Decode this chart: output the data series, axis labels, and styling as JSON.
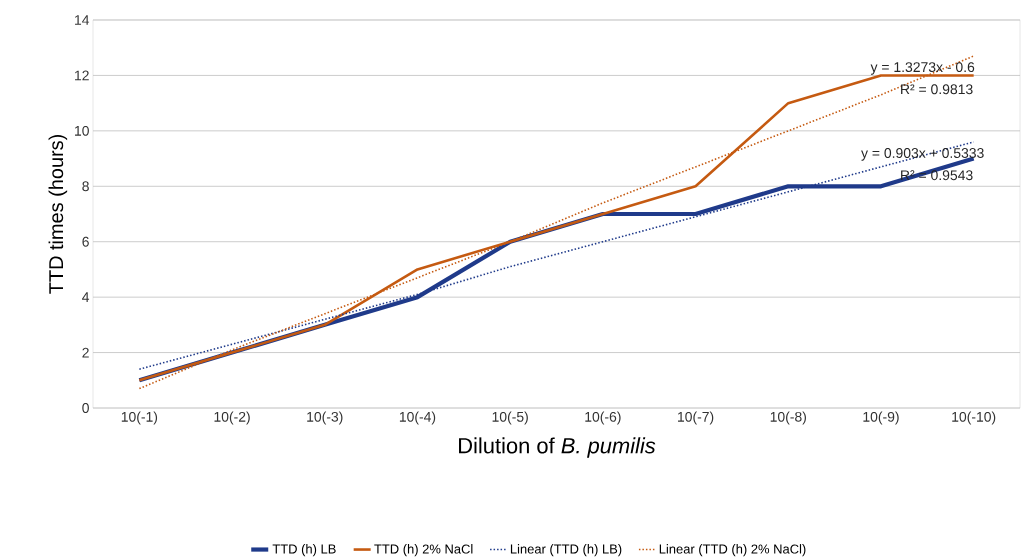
{
  "chart_data": {
    "type": "line",
    "xlabel": "Dilution of *B. pumilis*",
    "ylabel": "TTD times (hours)",
    "categories": [
      "10(-1)",
      "10(-2)",
      "10(-3)",
      "10(-4)",
      "10(-5)",
      "10(-6)",
      "10(-7)",
      "10(-8)",
      "10(-9)",
      "10(-10)"
    ],
    "series": [
      {
        "name": "TTD (h) LB",
        "color": "#1f3a8a",
        "values": [
          1,
          2,
          3,
          4,
          6,
          7,
          7,
          8,
          8,
          9
        ]
      },
      {
        "name": "TTD (h) 2% NaCl",
        "color": "#c55a11",
        "values": [
          1,
          2,
          3,
          5,
          6,
          7,
          8,
          11,
          12,
          12
        ]
      },
      {
        "name": "Linear (TTD (h) LB)",
        "type": "line",
        "line_style": "dotted",
        "color": "#1f3a8a",
        "values": [
          1.4,
          2.3,
          3.2,
          4.1,
          5.1,
          6.0,
          6.9,
          7.8,
          8.7,
          9.6
        ]
      },
      {
        "name": "Linear (TTD (h) 2% NaCl)",
        "type": "line",
        "line_style": "dotted",
        "color": "#c55a11",
        "values": [
          0.7,
          2.1,
          3.4,
          4.7,
          6.0,
          7.4,
          8.7,
          10.0,
          11.3,
          12.7
        ]
      }
    ],
    "annotations": [
      "y = 1.3273x - 0.6",
      "R² = 0.9813",
      "y = 0.903x + 0.5333",
      "R² = 0.9543"
    ],
    "ylim": [
      0,
      14
    ],
    "yticks": [
      0,
      2,
      4,
      6,
      8,
      10,
      12,
      14
    ],
    "grid": "y",
    "legend": "bottom",
    "marker": "none",
    "line_style": "solid"
  }
}
